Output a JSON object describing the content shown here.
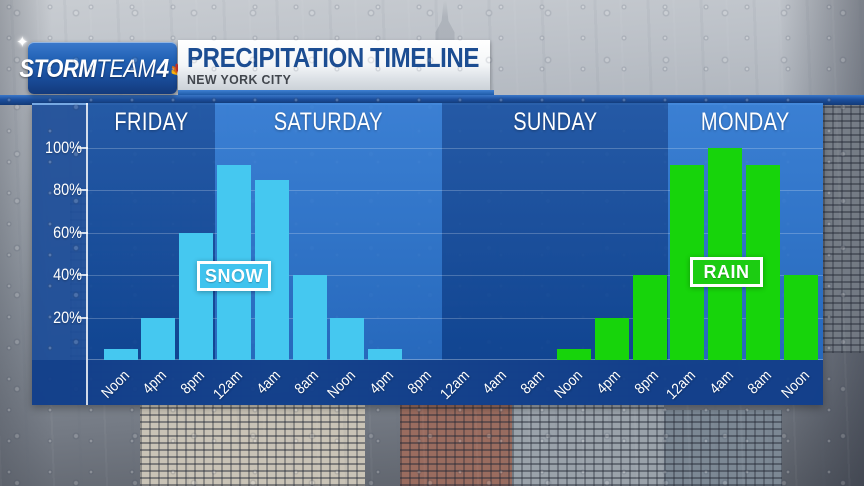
{
  "header": {
    "logo": {
      "part1": "STORM",
      "part2": "TEAM",
      "part3": "4"
    },
    "title": "PRECIPITATION TIMELINE",
    "subtitle": "NEW YORK CITY"
  },
  "chart_data": {
    "type": "bar",
    "title": "Precipitation Timeline",
    "location": "New York City",
    "unit": "percent chance of precipitation",
    "ylim": [
      0,
      100
    ],
    "grid": true,
    "yticks": [
      {
        "value": 100,
        "label": "100%"
      },
      {
        "value": 80,
        "label": "80%"
      },
      {
        "value": 60,
        "label": "60%"
      },
      {
        "value": 40,
        "label": "40%"
      },
      {
        "value": 20,
        "label": "20%"
      }
    ],
    "x_slot_labels": [
      "Noon",
      "4pm",
      "8pm",
      "12am",
      "4am",
      "8am",
      "Noon",
      "4pm",
      "8pm",
      "12am",
      "4am",
      "8am",
      "Noon",
      "4pm",
      "8pm",
      "12am",
      "4am",
      "8am",
      "Noon"
    ],
    "days": [
      {
        "label": "FRIDAY",
        "from_slot": 1,
        "to_slot": 3,
        "shade": "dark"
      },
      {
        "label": "SATURDAY",
        "from_slot": 4,
        "to_slot": 9,
        "shade": "light"
      },
      {
        "label": "SUNDAY",
        "from_slot": 10,
        "to_slot": 15,
        "shade": "dark"
      },
      {
        "label": "MONDAY",
        "from_slot": 16,
        "to_slot": 19,
        "shade": "light"
      }
    ],
    "series": [
      {
        "name": "SNOW",
        "color": "#45c8f0",
        "badge_color": "#3fc3ee",
        "slots": [
          1,
          2,
          3,
          4,
          5,
          6,
          7,
          8
        ],
        "values": [
          5,
          20,
          60,
          92,
          85,
          40,
          20,
          5
        ]
      },
      {
        "name": "RAIN",
        "color": "#17d40b",
        "badge_color": "#1ccc12",
        "slots": [
          13,
          14,
          15,
          16,
          17,
          18,
          19
        ],
        "values": [
          5,
          20,
          40,
          92,
          100,
          92,
          40
        ]
      }
    ]
  },
  "colors": {
    "day_dark": "rgba(18,77,160,0.92)",
    "day_light": "rgba(45,122,214,0.90)",
    "bottom_strip": "rgba(19,64,138,0.94)",
    "axis_white": "rgba(255,255,255,0.80)",
    "grid_white": "rgba(255,255,255,0.22)",
    "header_bar_blue": "#1d55a8",
    "title_text": "#1c4d92",
    "subtitle_text": "#41464d",
    "peacock": [
      "#ffb40c",
      "#e8710a",
      "#d1342a",
      "#7a3f98",
      "#2a6fd8",
      "#3aa335"
    ]
  }
}
